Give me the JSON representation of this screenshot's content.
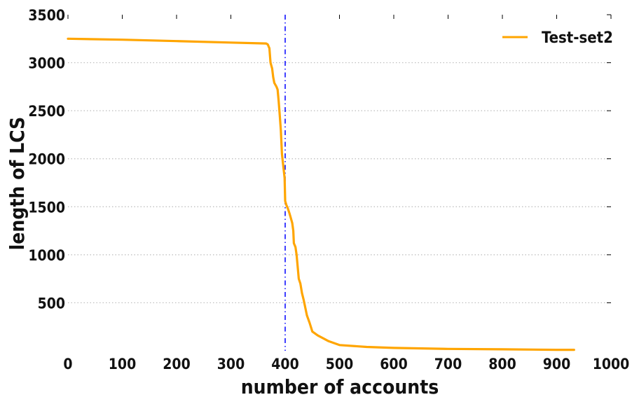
{
  "chart_data": {
    "type": "line",
    "title": "",
    "xlabel": "number of accounts",
    "ylabel": "length of LCS",
    "xlim": [
      0,
      1000
    ],
    "ylim": [
      0,
      3500
    ],
    "x_ticks": [
      "0",
      "100",
      "200",
      "300",
      "400",
      "500",
      "600",
      "700",
      "800",
      "900",
      "1000"
    ],
    "y_ticks": [
      "500",
      "1000",
      "1500",
      "2000",
      "2500",
      "3000",
      "3500"
    ],
    "grid": "y-dotted",
    "legend_position": "top-right",
    "vertical_line": {
      "x": 400,
      "style": "dash-dot",
      "color": "#0000ff"
    },
    "series": [
      {
        "name": "Test-set2",
        "color": "#ffa500",
        "points": [
          [
            0,
            3250
          ],
          [
            100,
            3240
          ],
          [
            200,
            3225
          ],
          [
            300,
            3210
          ],
          [
            365,
            3200
          ],
          [
            368,
            3190
          ],
          [
            371,
            3150
          ],
          [
            373,
            3000
          ],
          [
            376,
            2940
          ],
          [
            378,
            2850
          ],
          [
            380,
            2790
          ],
          [
            384,
            2750
          ],
          [
            386,
            2720
          ],
          [
            388,
            2600
          ],
          [
            390,
            2450
          ],
          [
            392,
            2300
          ],
          [
            394,
            2050
          ],
          [
            396,
            1950
          ],
          [
            399,
            1800
          ],
          [
            400,
            1560
          ],
          [
            402,
            1520
          ],
          [
            405,
            1480
          ],
          [
            408,
            1430
          ],
          [
            410,
            1390
          ],
          [
            413,
            1330
          ],
          [
            415,
            1250
          ],
          [
            416,
            1120
          ],
          [
            419,
            1080
          ],
          [
            421,
            1000
          ],
          [
            423,
            880
          ],
          [
            425,
            750
          ],
          [
            428,
            700
          ],
          [
            431,
            600
          ],
          [
            434,
            530
          ],
          [
            437,
            450
          ],
          [
            440,
            370
          ],
          [
            445,
            290
          ],
          [
            450,
            200
          ],
          [
            460,
            160
          ],
          [
            470,
            130
          ],
          [
            480,
            100
          ],
          [
            500,
            60
          ],
          [
            550,
            40
          ],
          [
            600,
            30
          ],
          [
            700,
            20
          ],
          [
            800,
            15
          ],
          [
            900,
            10
          ],
          [
            932,
            10
          ]
        ]
      }
    ]
  }
}
